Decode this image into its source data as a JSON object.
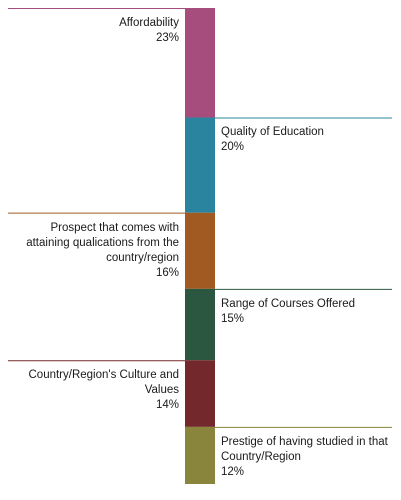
{
  "chart_data": {
    "type": "bar",
    "orientation": "stacked-vertical",
    "categories": [
      "Affordability",
      "Quality of Education",
      "Prospect that comes with attaining qualications from the country/region",
      "Range of Courses Offered",
      "Country/Region's Culture and Values",
      "Prestige of having studied in that Country/Region"
    ],
    "values": [
      23,
      20,
      16,
      15,
      14,
      12
    ],
    "value_labels": [
      "23%",
      "20%",
      "16%",
      "15%",
      "14%",
      "12%"
    ],
    "colors": [
      "#a64d7e",
      "#2b849f",
      "#a05a22",
      "#2b5740",
      "#73282c",
      "#8a853c"
    ],
    "label_sides": [
      "left",
      "right",
      "left",
      "right",
      "left",
      "right"
    ],
    "connector_color": "#c9a0b4",
    "title": "",
    "legend": "none"
  }
}
